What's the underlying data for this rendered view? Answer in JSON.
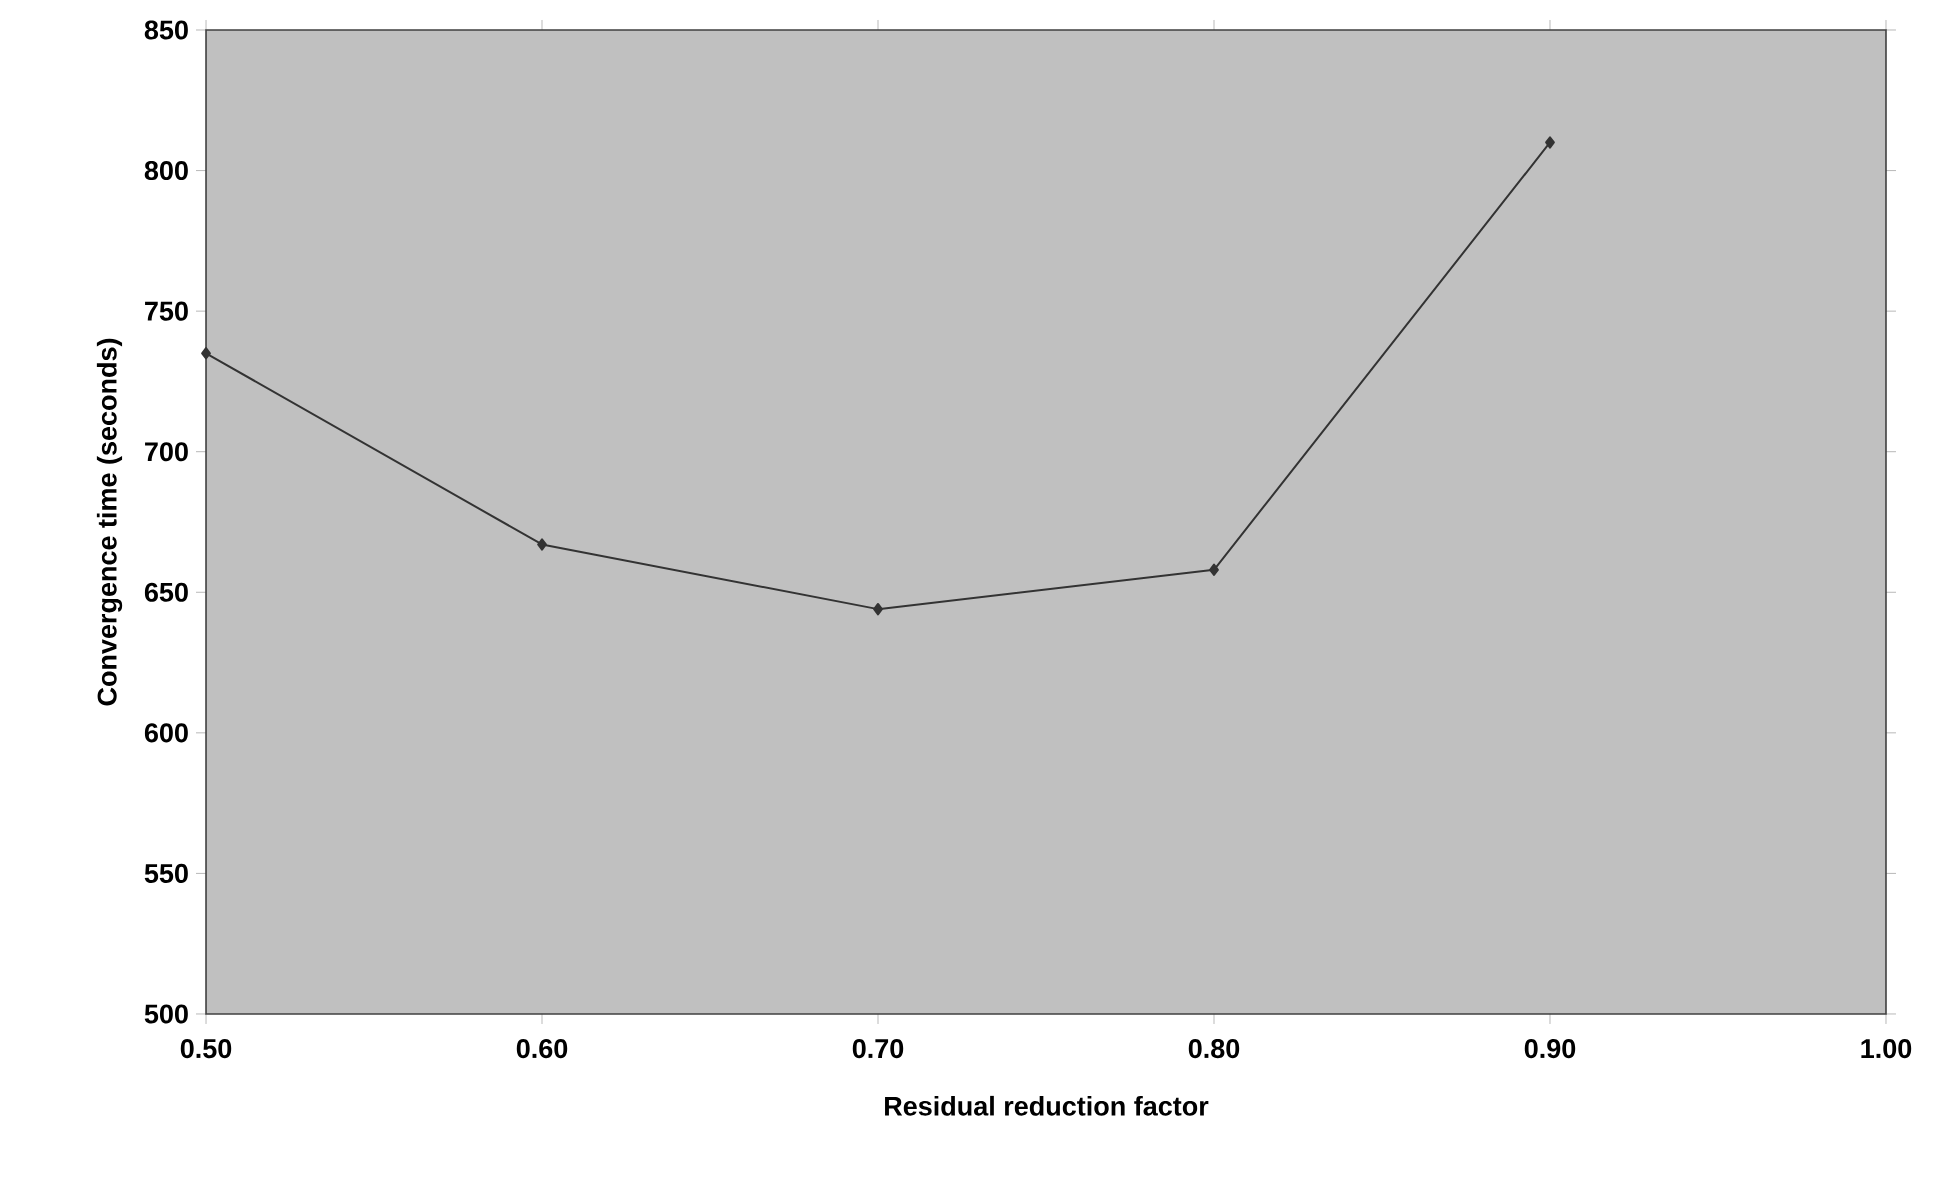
{
  "chart_data": {
    "type": "line",
    "xlabel": "Residual reduction factor",
    "ylabel": "Convergence  time (seconds)",
    "x": [
      0.5,
      0.6,
      0.7,
      0.8,
      0.9
    ],
    "series": [
      {
        "color": "#333333",
        "values": [
          735,
          667,
          644,
          658,
          810
        ]
      }
    ],
    "xlim": [
      0.5,
      1.0
    ],
    "xticks": [
      {
        "value": 0.5,
        "label": "0.50"
      },
      {
        "value": 0.6,
        "label": "0.60"
      },
      {
        "value": 0.7,
        "label": "0.70"
      },
      {
        "value": 0.8,
        "label": "0.80"
      },
      {
        "value": 0.9,
        "label": "0.90"
      },
      {
        "value": 1.0,
        "label": "1.00"
      }
    ],
    "ylim": [
      500,
      850
    ],
    "yticks": [
      500,
      550,
      600,
      650,
      700,
      750,
      800,
      850
    ],
    "marker": "diamond",
    "line_style": "solid",
    "grid": false
  }
}
